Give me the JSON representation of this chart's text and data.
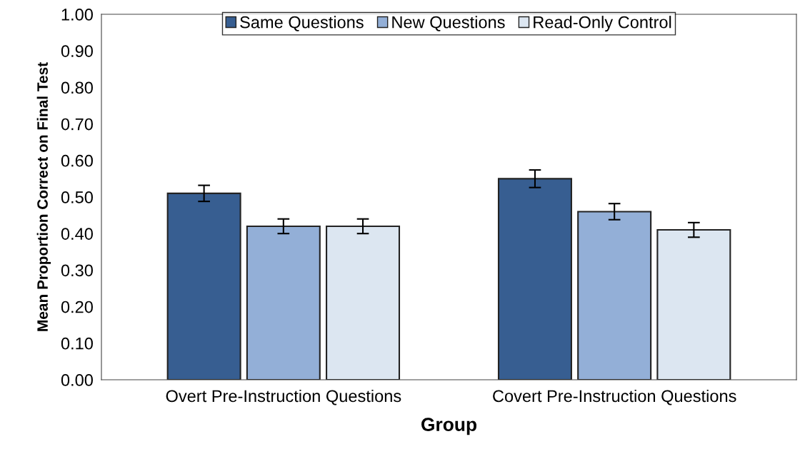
{
  "chart_data": {
    "type": "bar",
    "xlabel": "Group",
    "ylabel": "Mean Proportion Correct on Final Test",
    "categories": [
      "Overt Pre-Instruction Questions",
      "Covert Pre-Instruction Questions"
    ],
    "series": [
      {
        "name": "Same Questions",
        "color": "#375e91",
        "values": [
          0.51,
          0.55
        ],
        "errors": [
          0.022,
          0.024
        ]
      },
      {
        "name": "New Questions",
        "color": "#93afd7",
        "values": [
          0.42,
          0.46
        ],
        "errors": [
          0.02,
          0.022
        ]
      },
      {
        "name": "Read-Only Control",
        "color": "#dce6f1",
        "values": [
          0.42,
          0.41
        ],
        "errors": [
          0.02,
          0.02
        ]
      }
    ],
    "ylim": [
      0,
      1
    ],
    "yticks": [
      {
        "value": 0,
        "label": "0.00"
      },
      {
        "value": 0.1,
        "label": "0.10"
      },
      {
        "value": 0.2,
        "label": "0.20"
      },
      {
        "value": 0.3,
        "label": "0.30"
      },
      {
        "value": 0.4,
        "label": "0.40"
      },
      {
        "value": 0.5,
        "label": "0.50"
      },
      {
        "value": 0.6,
        "label": "0.60"
      },
      {
        "value": 0.7,
        "label": "0.70"
      },
      {
        "value": 0.8,
        "label": "0.80"
      },
      {
        "value": 0.9,
        "label": "0.90"
      },
      {
        "value": 1,
        "label": "1.00"
      }
    ],
    "grid": false,
    "legend": "top"
  }
}
